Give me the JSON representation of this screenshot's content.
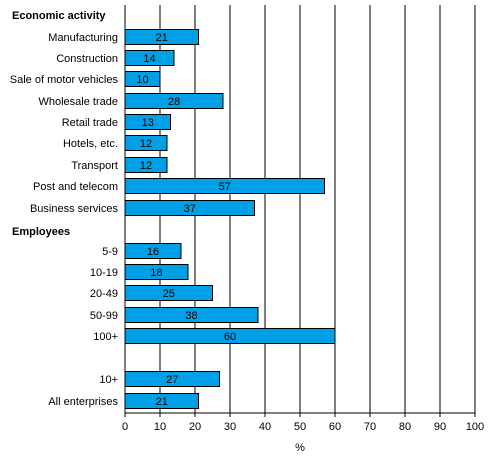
{
  "chart_data": {
    "type": "bar",
    "orientation": "horizontal",
    "xlabel": "%",
    "xlim": [
      0,
      100
    ],
    "xticks": [
      "0",
      "10",
      "20",
      "30",
      "40",
      "50",
      "60",
      "70",
      "80",
      "90",
      "100"
    ],
    "grid": true,
    "bar_color": "#00a0e6",
    "bar_edge_color": "#000000",
    "groups": [
      {
        "heading": "Economic activity",
        "categories": [
          "Manufacturing",
          "Construction",
          "Sale of motor vehicles",
          "Wholesale trade",
          "Retail trade",
          "Hotels, etc.",
          "Transport",
          "Post and telecom",
          "Business services"
        ],
        "values": [
          21,
          14,
          10,
          28,
          13,
          12,
          12,
          57,
          37
        ]
      },
      {
        "heading": "Employees",
        "categories": [
          "5-9",
          "10-19",
          "20-49",
          "50-99",
          "100+"
        ],
        "values": [
          16,
          18,
          25,
          38,
          60
        ]
      },
      {
        "heading": "",
        "categories": [
          "10+",
          "All enterprises"
        ],
        "values": [
          27,
          21
        ]
      }
    ]
  }
}
